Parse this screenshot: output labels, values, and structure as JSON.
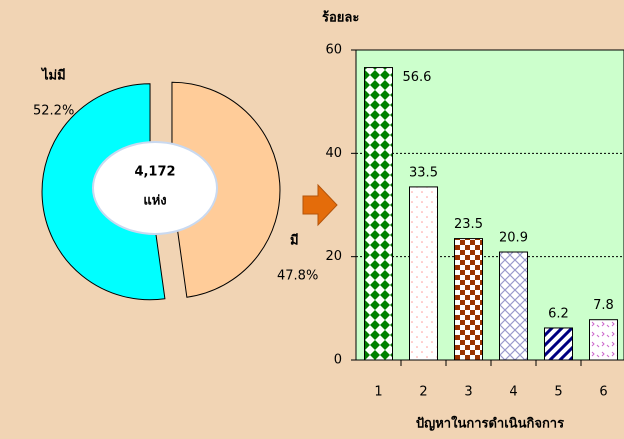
{
  "chart_data": [
    {
      "type": "pie",
      "categories": [
        "ไม่มี",
        "มี"
      ],
      "values": [
        52.2,
        47.8
      ],
      "value_labels": [
        "52.2%",
        "47.8%"
      ],
      "colors": [
        "#00ffff",
        "#ffcc99"
      ],
      "annotations": [
        "4,172",
        "แห่ง"
      ]
    },
    {
      "type": "bar",
      "title": "ร้อยละ",
      "xlabel": "ปัญหาในการดำเนินกิจการ",
      "categories": [
        "1",
        "2",
        "3",
        "4",
        "5",
        "6"
      ],
      "values": [
        56.6,
        33.5,
        23.5,
        20.9,
        6.2,
        7.8
      ],
      "colors": [
        "#008000",
        "#ff9999",
        "#993300",
        "#9999cc",
        "#000080",
        "#cc66cc"
      ],
      "ylim": [
        0,
        60
      ],
      "yticks": [
        0,
        20,
        40,
        60
      ],
      "grid": true
    }
  ]
}
